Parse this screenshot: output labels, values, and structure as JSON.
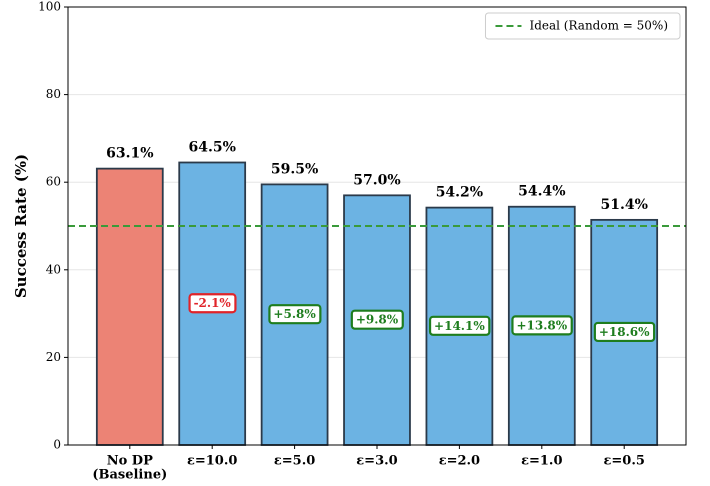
{
  "chart_data": {
    "type": "bar",
    "ylabel": "Success Rate (%)",
    "categories": [
      [
        "No DP",
        "(Baseline)"
      ],
      [
        "ε=10.0"
      ],
      [
        "ε=5.0"
      ],
      [
        "ε=3.0"
      ],
      [
        "ε=2.0"
      ],
      [
        "ε=1.0"
      ],
      [
        "ε=0.5"
      ]
    ],
    "values": [
      63.1,
      64.5,
      59.5,
      57.0,
      54.2,
      54.4,
      51.4
    ],
    "value_labels": [
      "63.1%",
      "64.5%",
      "59.5%",
      "57.0%",
      "54.2%",
      "54.4%",
      "51.4%"
    ],
    "colors": [
      "#ec8375",
      "#6cb3e3",
      "#6cb3e3",
      "#6cb3e3",
      "#6cb3e3",
      "#6cb3e3",
      "#6cb3e3"
    ],
    "delta_labels": [
      null,
      "-2.1%",
      "+5.8%",
      "+9.8%",
      "+14.1%",
      "+13.8%",
      "+18.6%"
    ],
    "reference_line": {
      "value": 50,
      "label": "Ideal (Random = 50%)",
      "color": "#3a9a3a"
    },
    "legend": "upper right",
    "ylim": [
      0,
      100
    ],
    "yticks": [
      0,
      20,
      40,
      60,
      80,
      100
    ],
    "grid": true
  }
}
